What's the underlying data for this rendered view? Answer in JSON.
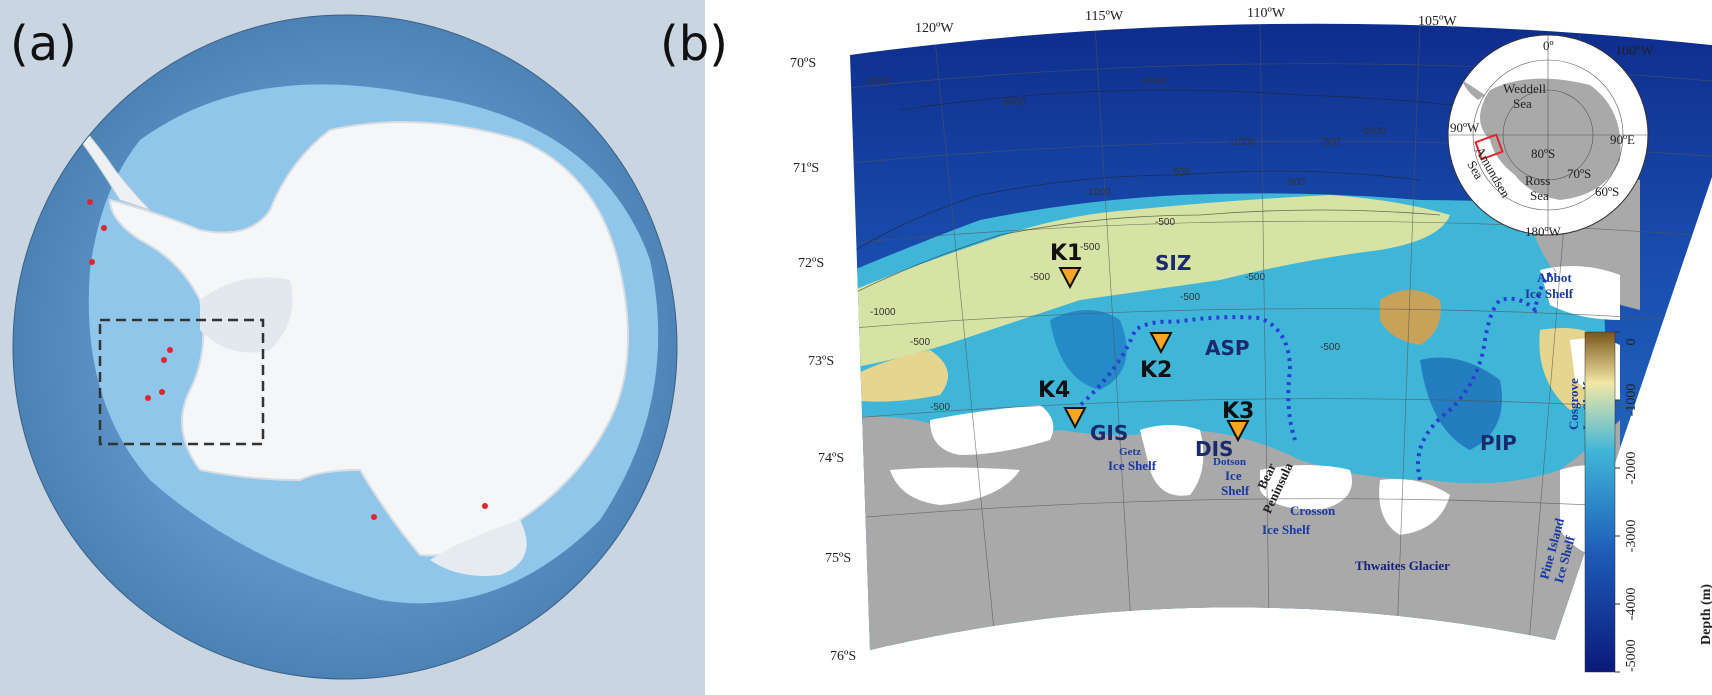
{
  "panel_a": {
    "label": "(a)",
    "colors": {
      "ocean_deep": "#4f85b8",
      "ocean_mid": "#6ea3d0",
      "ocean_shelf": "#8fc6ea",
      "ice": "#f4f6f8",
      "station": "#e0262c"
    }
  },
  "panel_b": {
    "label": "(b)",
    "longitude_ticks": [
      "120ºW",
      "115ºW",
      "110ºW",
      "105ºW",
      "100ºW"
    ],
    "latitude_ticks": [
      "70ºS",
      "71ºS",
      "72ºS",
      "73ºS",
      "74ºS",
      "75ºS",
      "76ºS"
    ],
    "contour_labels": [
      "-3000",
      "-3000",
      "-3000",
      "-1000",
      "-1000",
      "-1000",
      "-500",
      "-500",
      "-500",
      "-500",
      "-500",
      "-500",
      "-1000",
      "-500",
      "-500",
      "-500",
      "-500",
      "-500"
    ],
    "stations": [
      {
        "name": "K1"
      },
      {
        "name": "K2"
      },
      {
        "name": "K3"
      },
      {
        "name": "K4"
      }
    ],
    "regions": [
      {
        "name": "SIZ"
      },
      {
        "name": "ASP"
      },
      {
        "name": "PIP"
      },
      {
        "name": "GIS"
      },
      {
        "name": "DIS"
      }
    ],
    "ice_shelves": {
      "abbot": [
        "Abbot",
        "Ice Shelf"
      ],
      "cosgrove": [
        "Cosgrove",
        "Ice Shelf"
      ],
      "getz": [
        "Getz",
        "Ice Shelf"
      ],
      "dotson": [
        "Dotson",
        "Ice",
        "Shelf"
      ],
      "bear": [
        "Bear",
        "Peninsula"
      ],
      "crosson": [
        "Crosson",
        "Ice Shelf"
      ],
      "thwaites": "Thwaites Glacier",
      "pine_island": [
        "Pine Island",
        "Ice Shelf"
      ]
    },
    "inset": {
      "labels": [
        "0º",
        "Weddell",
        "Sea",
        "90ºW",
        "90ºE",
        "80ºS",
        "70ºS",
        "60ºS",
        "Amundsen",
        "Sea",
        "Ross",
        "Sea",
        "180ºW"
      ]
    },
    "colorbar": {
      "title": "Depth (m)",
      "ticks": [
        "0",
        "-1000",
        "-2000",
        "-3000",
        "-4000",
        "-5000"
      ],
      "range": [
        -5000,
        0
      ]
    },
    "colors": {
      "deep": "#0a1a7a",
      "shelf": "#3fb6d8",
      "shallow": "#f2e7a6",
      "land": "#a9a9a9",
      "ice": "#ffffff",
      "front_line": "#2b3fd6",
      "station_fill": "#f5a623"
    }
  }
}
